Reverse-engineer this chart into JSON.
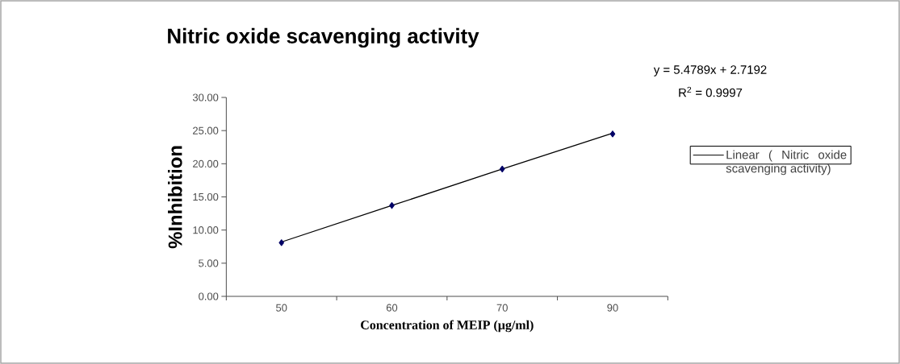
{
  "chart_data": {
    "type": "scatter",
    "title": "Nitric oxide scavenging activity",
    "xlabel": "Concentration of MEIP (µg/ml)",
    "ylabel": "%Inhibition",
    "categories": [
      "50",
      "60",
      "70",
      "90"
    ],
    "series": [
      {
        "color": "#000066",
        "marker": "diamond",
        "values": [
          8.1,
          13.7,
          19.2,
          24.5
        ]
      },
      {
        "type": "line",
        "name": "Linear (  Nitric oxide scavenging activity)",
        "color": "#000000",
        "marker": "none",
        "values": [
          8.2,
          13.7,
          19.2,
          24.6
        ]
      }
    ],
    "ylim": [
      0,
      30
    ],
    "yticks": [
      {
        "value": 0,
        "label": "0.00"
      },
      {
        "value": 5,
        "label": "5.00"
      },
      {
        "value": 10,
        "label": "10.00"
      },
      {
        "value": 15,
        "label": "15.00"
      },
      {
        "value": 20,
        "label": "20.00"
      },
      {
        "value": 25,
        "label": "25.00"
      },
      {
        "value": 30,
        "label": "30.00"
      }
    ],
    "annotations": [
      "y = 5.4789x + 2.7192",
      "R$^{2}$ = 0.9997"
    ],
    "legend": "right",
    "grid": false
  }
}
